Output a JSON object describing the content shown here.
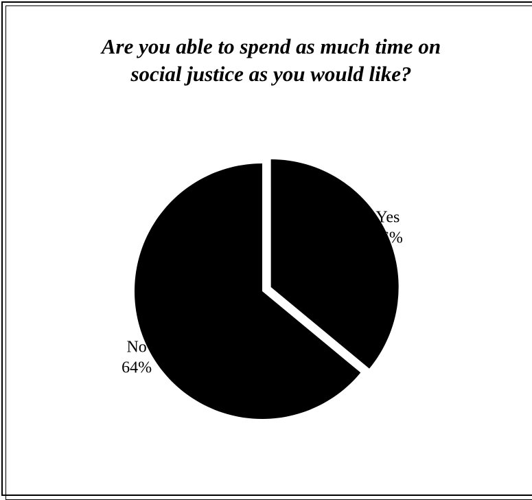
{
  "chart_data": {
    "type": "pie",
    "title_lines": [
      "Are you able to spend as much time on",
      "social justice as you would like?"
    ],
    "slices": [
      {
        "label": "Yes",
        "value": 36,
        "value_label": "36%",
        "exploded": true,
        "color": "#000000"
      },
      {
        "label": "No",
        "value": 64,
        "value_label": "64%",
        "exploded": false,
        "color": "#000000"
      }
    ],
    "start_angle": "12 o'clock",
    "direction": "clockwise",
    "legend": "none"
  }
}
